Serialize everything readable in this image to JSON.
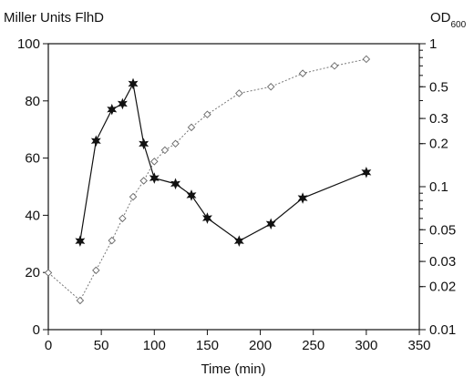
{
  "chart_data": {
    "type": "line",
    "left_axis_label": "Miller Units FlhD",
    "right_axis_label_main": "OD",
    "right_axis_label_sub": "600",
    "xlabel": "Time (min)",
    "xlim": [
      0,
      350
    ],
    "xticks": [
      0,
      50,
      100,
      150,
      200,
      250,
      300,
      350
    ],
    "ylim_left": [
      0,
      100
    ],
    "yticks_left": [
      0,
      20,
      40,
      60,
      80,
      100
    ],
    "ylim_right": [
      0.01,
      1
    ],
    "right_scale": "log",
    "yticks_right": [
      1,
      0.5,
      0.3,
      0.2,
      0.1,
      0.05,
      0.03,
      0.02,
      0.01
    ],
    "yticklabels_right": [
      "1",
      "0.5",
      "0.3",
      "0.2",
      "0.1",
      "0.05",
      "0.03",
      "0.02",
      "0.01"
    ],
    "grid": false,
    "series": [
      {
        "axis": "left",
        "marker": "filled-star",
        "line": "solid",
        "color": "#111111",
        "x": [
          30,
          45,
          60,
          70,
          80,
          90,
          100,
          120,
          135,
          150,
          180,
          210,
          240,
          300
        ],
        "y": [
          31,
          66,
          77,
          79,
          86,
          65,
          53,
          51,
          47,
          39,
          31,
          37,
          46,
          55
        ]
      },
      {
        "axis": "right",
        "marker": "open-diamond",
        "line": "dotted",
        "color": "#777777",
        "x": [
          0,
          30,
          45,
          60,
          70,
          80,
          90,
          100,
          110,
          120,
          135,
          150,
          180,
          210,
          240,
          270,
          300
        ],
        "y": [
          0.025,
          0.016,
          0.026,
          0.042,
          0.06,
          0.085,
          0.11,
          0.15,
          0.18,
          0.2,
          0.26,
          0.32,
          0.45,
          0.5,
          0.62,
          0.7,
          0.78
        ]
      }
    ]
  }
}
